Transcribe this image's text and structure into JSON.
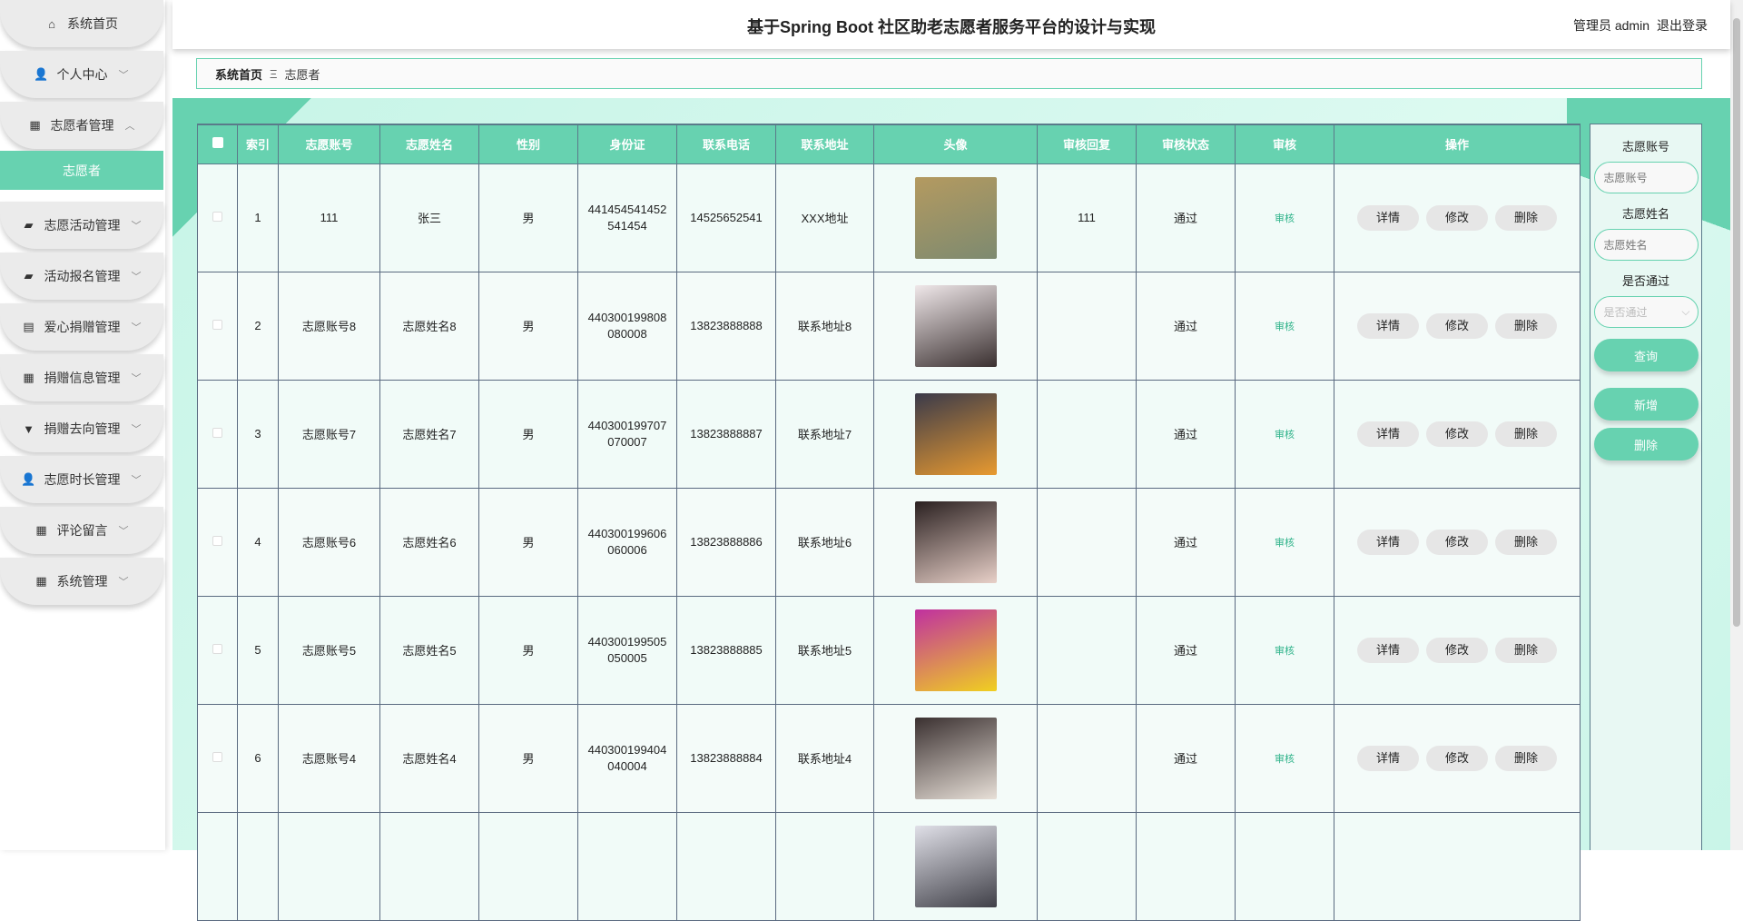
{
  "header": {
    "title": "基于Spring Boot 社区助老志愿者服务平台的设计与实现",
    "user": "管理员 admin",
    "logout": "退出登录"
  },
  "sidebar": {
    "items": [
      {
        "label": "系统首页",
        "icon": "home-icon",
        "glyph": "⌂",
        "chevron": ""
      },
      {
        "label": "个人中心",
        "icon": "user-icon",
        "glyph": "👤",
        "chevron": "﹀"
      },
      {
        "label": "志愿者管理",
        "icon": "grid-icon",
        "glyph": "▦",
        "chevron": "︿"
      },
      {
        "label": "志愿活动管理",
        "icon": "briefcase-icon",
        "glyph": "▰",
        "chevron": "﹀"
      },
      {
        "label": "活动报名管理",
        "icon": "briefcase-icon",
        "glyph": "▰",
        "chevron": "﹀"
      },
      {
        "label": "爱心捐赠管理",
        "icon": "clipboard-icon",
        "glyph": "▤",
        "chevron": "﹀"
      },
      {
        "label": "捐赠信息管理",
        "icon": "grid-icon",
        "glyph": "▦",
        "chevron": "﹀"
      },
      {
        "label": "捐赠去向管理",
        "icon": "stamp-icon",
        "glyph": "▼",
        "chevron": "﹀"
      },
      {
        "label": "志愿时长管理",
        "icon": "user-icon",
        "glyph": "👤",
        "chevron": "﹀"
      },
      {
        "label": "评论留言",
        "icon": "grid-icon",
        "glyph": "▦",
        "chevron": "﹀"
      },
      {
        "label": "系统管理",
        "icon": "grid-icon",
        "glyph": "▦",
        "chevron": "﹀"
      }
    ],
    "active_sub": "志愿者"
  },
  "breadcrumb": {
    "home": "系统首页",
    "sep": "Ξ",
    "current": "志愿者"
  },
  "table": {
    "columns": [
      "索引",
      "志愿账号",
      "志愿姓名",
      "性别",
      "身份证",
      "联系电话",
      "联系地址",
      "头像",
      "审核回复",
      "审核状态",
      "审核",
      "操作"
    ],
    "rows": [
      {
        "idx": "1",
        "account": "111",
        "name": "张三",
        "gender": "男",
        "id": "441454541452541454",
        "phone": "14525652541",
        "addr": "XXX地址",
        "reply": "111",
        "status": "通过",
        "avatar": [
          "#b49a60",
          "#7d8a70"
        ]
      },
      {
        "idx": "2",
        "account": "志愿账号8",
        "name": "志愿姓名8",
        "gender": "男",
        "id": "440300199808080008",
        "phone": "13823888888",
        "addr": "联系地址8",
        "reply": "",
        "status": "通过",
        "avatar": [
          "#f0e8ea",
          "#3a3030"
        ]
      },
      {
        "idx": "3",
        "account": "志愿账号7",
        "name": "志愿姓名7",
        "gender": "男",
        "id": "440300199707070007",
        "phone": "13823888887",
        "addr": "联系地址7",
        "reply": "",
        "status": "通过",
        "avatar": [
          "#3a3a4a",
          "#e89a30"
        ]
      },
      {
        "idx": "4",
        "account": "志愿账号6",
        "name": "志愿姓名6",
        "gender": "男",
        "id": "440300199606060006",
        "phone": "13823888886",
        "addr": "联系地址6",
        "reply": "",
        "status": "通过",
        "avatar": [
          "#2a2020",
          "#e8d0c8"
        ]
      },
      {
        "idx": "5",
        "account": "志愿账号5",
        "name": "志愿姓名5",
        "gender": "男",
        "id": "440300199505050005",
        "phone": "13823888885",
        "addr": "联系地址5",
        "reply": "",
        "status": "通过",
        "avatar": [
          "#c030a0",
          "#f0d020"
        ]
      },
      {
        "idx": "6",
        "account": "志愿账号4",
        "name": "志愿姓名4",
        "gender": "男",
        "id": "440300199404040004",
        "phone": "13823888884",
        "addr": "联系地址4",
        "reply": "",
        "status": "通过",
        "avatar": [
          "#3a3030",
          "#e8e0d8"
        ]
      }
    ],
    "audit_link": "审核",
    "actions": {
      "detail": "详情",
      "edit": "修改",
      "delete": "删除"
    }
  },
  "search": {
    "account_label": "志愿账号",
    "account_placeholder": "志愿账号",
    "name_label": "志愿姓名",
    "name_placeholder": "志愿姓名",
    "pass_label": "是否通过",
    "pass_placeholder": "是否通过",
    "query": "查询",
    "add": "新增",
    "delete": "删除"
  },
  "colors": {
    "accent": "#67d2b0",
    "link": "#2fb38a"
  }
}
